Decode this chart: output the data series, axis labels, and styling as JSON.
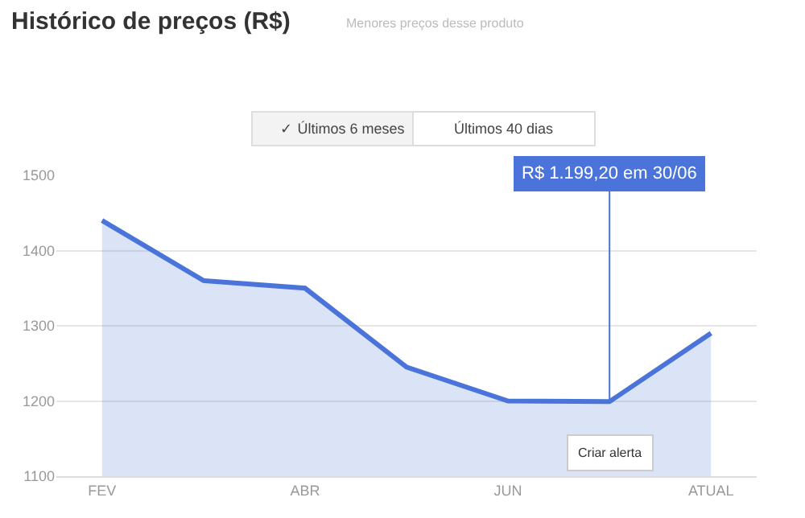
{
  "chart_data": {
    "type": "area",
    "title": "Histórico de preços (R$)",
    "subtitle": "Menores preços desse produto",
    "categories": [
      "FEV",
      null,
      "ABR",
      null,
      "JUN",
      null,
      "ATUAL"
    ],
    "series": [
      {
        "color": "#4a74d9",
        "values": [
          1440,
          1360,
          1350,
          1245,
          1200,
          1199.2,
          1290
        ]
      }
    ],
    "ylim": [
      1100,
      1500
    ],
    "yticks": [
      1100,
      1200,
      1300,
      1400,
      1500
    ],
    "grid": "y",
    "legend": false,
    "annotations": [
      "✓ Últimos 6 meses",
      "Últimos 40 dias",
      {
        "text": "R$ 1.199,20 em 30/06",
        "y": 1199.2
      },
      "Criar alerta"
    ]
  }
}
